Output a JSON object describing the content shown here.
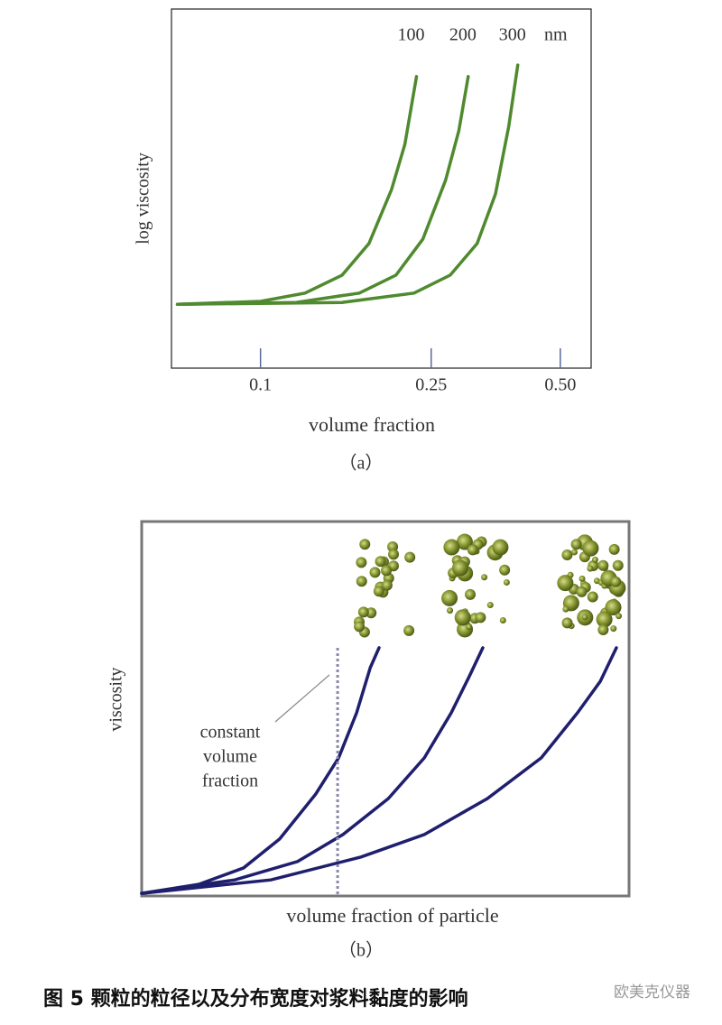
{
  "chart_data": [
    {
      "type": "line",
      "xscale": "log",
      "xlim": [
        0.062,
        0.59
      ],
      "ylim": [
        0,
        1
      ],
      "xticks": [
        0.1,
        0.25,
        {
          "value": 0.5,
          "label": "0.50"
        }
      ],
      "xlabel": "volume fraction",
      "ylabel": "log viscosity",
      "panel_label": "（a）",
      "unit_label": "nm",
      "series": [
        {
          "name": "100",
          "color": "#4f8a2f",
          "x": [
            0.064,
            0.1,
            0.127,
            0.155,
            0.179,
            0.202,
            0.217,
            0.231
          ],
          "values": [
            0.178,
            0.186,
            0.209,
            0.259,
            0.347,
            0.497,
            0.623,
            0.812
          ]
        },
        {
          "name": "200",
          "color": "#4f8a2f",
          "x": [
            0.064,
            0.121,
            0.17,
            0.207,
            0.239,
            0.27,
            0.29,
            0.305
          ],
          "values": [
            0.178,
            0.183,
            0.209,
            0.259,
            0.359,
            0.523,
            0.661,
            0.812
          ]
        },
        {
          "name": "300",
          "color": "#4f8a2f",
          "x": [
            0.064,
            0.155,
            0.228,
            0.277,
            0.32,
            0.353,
            0.379,
            0.398
          ],
          "values": [
            0.178,
            0.183,
            0.209,
            0.259,
            0.347,
            0.485,
            0.673,
            0.844
          ]
        }
      ]
    },
    {
      "type": "line",
      "xscale": "linear",
      "xlim": [
        0,
        1
      ],
      "ylim": [
        0,
        1
      ],
      "xlabel": "volume fraction of particle",
      "ylabel": "viscosity",
      "panel_label": "（b）",
      "marker_x": 0.402,
      "marker_label": [
        "constant",
        "volume",
        "fraction"
      ],
      "series": [
        {
          "color": "#1f1f6e",
          "x": [
            0,
            0.117,
            0.209,
            0.283,
            0.357,
            0.404,
            0.441,
            0.469,
            0.487
          ],
          "values": [
            0.007,
            0.031,
            0.075,
            0.152,
            0.272,
            0.369,
            0.489,
            0.61,
            0.663
          ]
        },
        {
          "color": "#1f1f6e",
          "x": [
            0,
            0.191,
            0.32,
            0.413,
            0.506,
            0.58,
            0.635,
            0.672,
            0.7
          ],
          "values": [
            0.007,
            0.043,
            0.092,
            0.164,
            0.26,
            0.369,
            0.489,
            0.586,
            0.663
          ]
        },
        {
          "color": "#1f1f6e",
          "x": [
            0,
            0.265,
            0.45,
            0.58,
            0.709,
            0.82,
            0.894,
            0.941,
            0.974
          ],
          "values": [
            0.007,
            0.043,
            0.104,
            0.164,
            0.26,
            0.369,
            0.489,
            0.573,
            0.663
          ]
        }
      ]
    }
  ],
  "caption": "图 5   颗粒的粒径以及分布宽度对浆料黏度的影响",
  "watermark": "欧美克仪器"
}
